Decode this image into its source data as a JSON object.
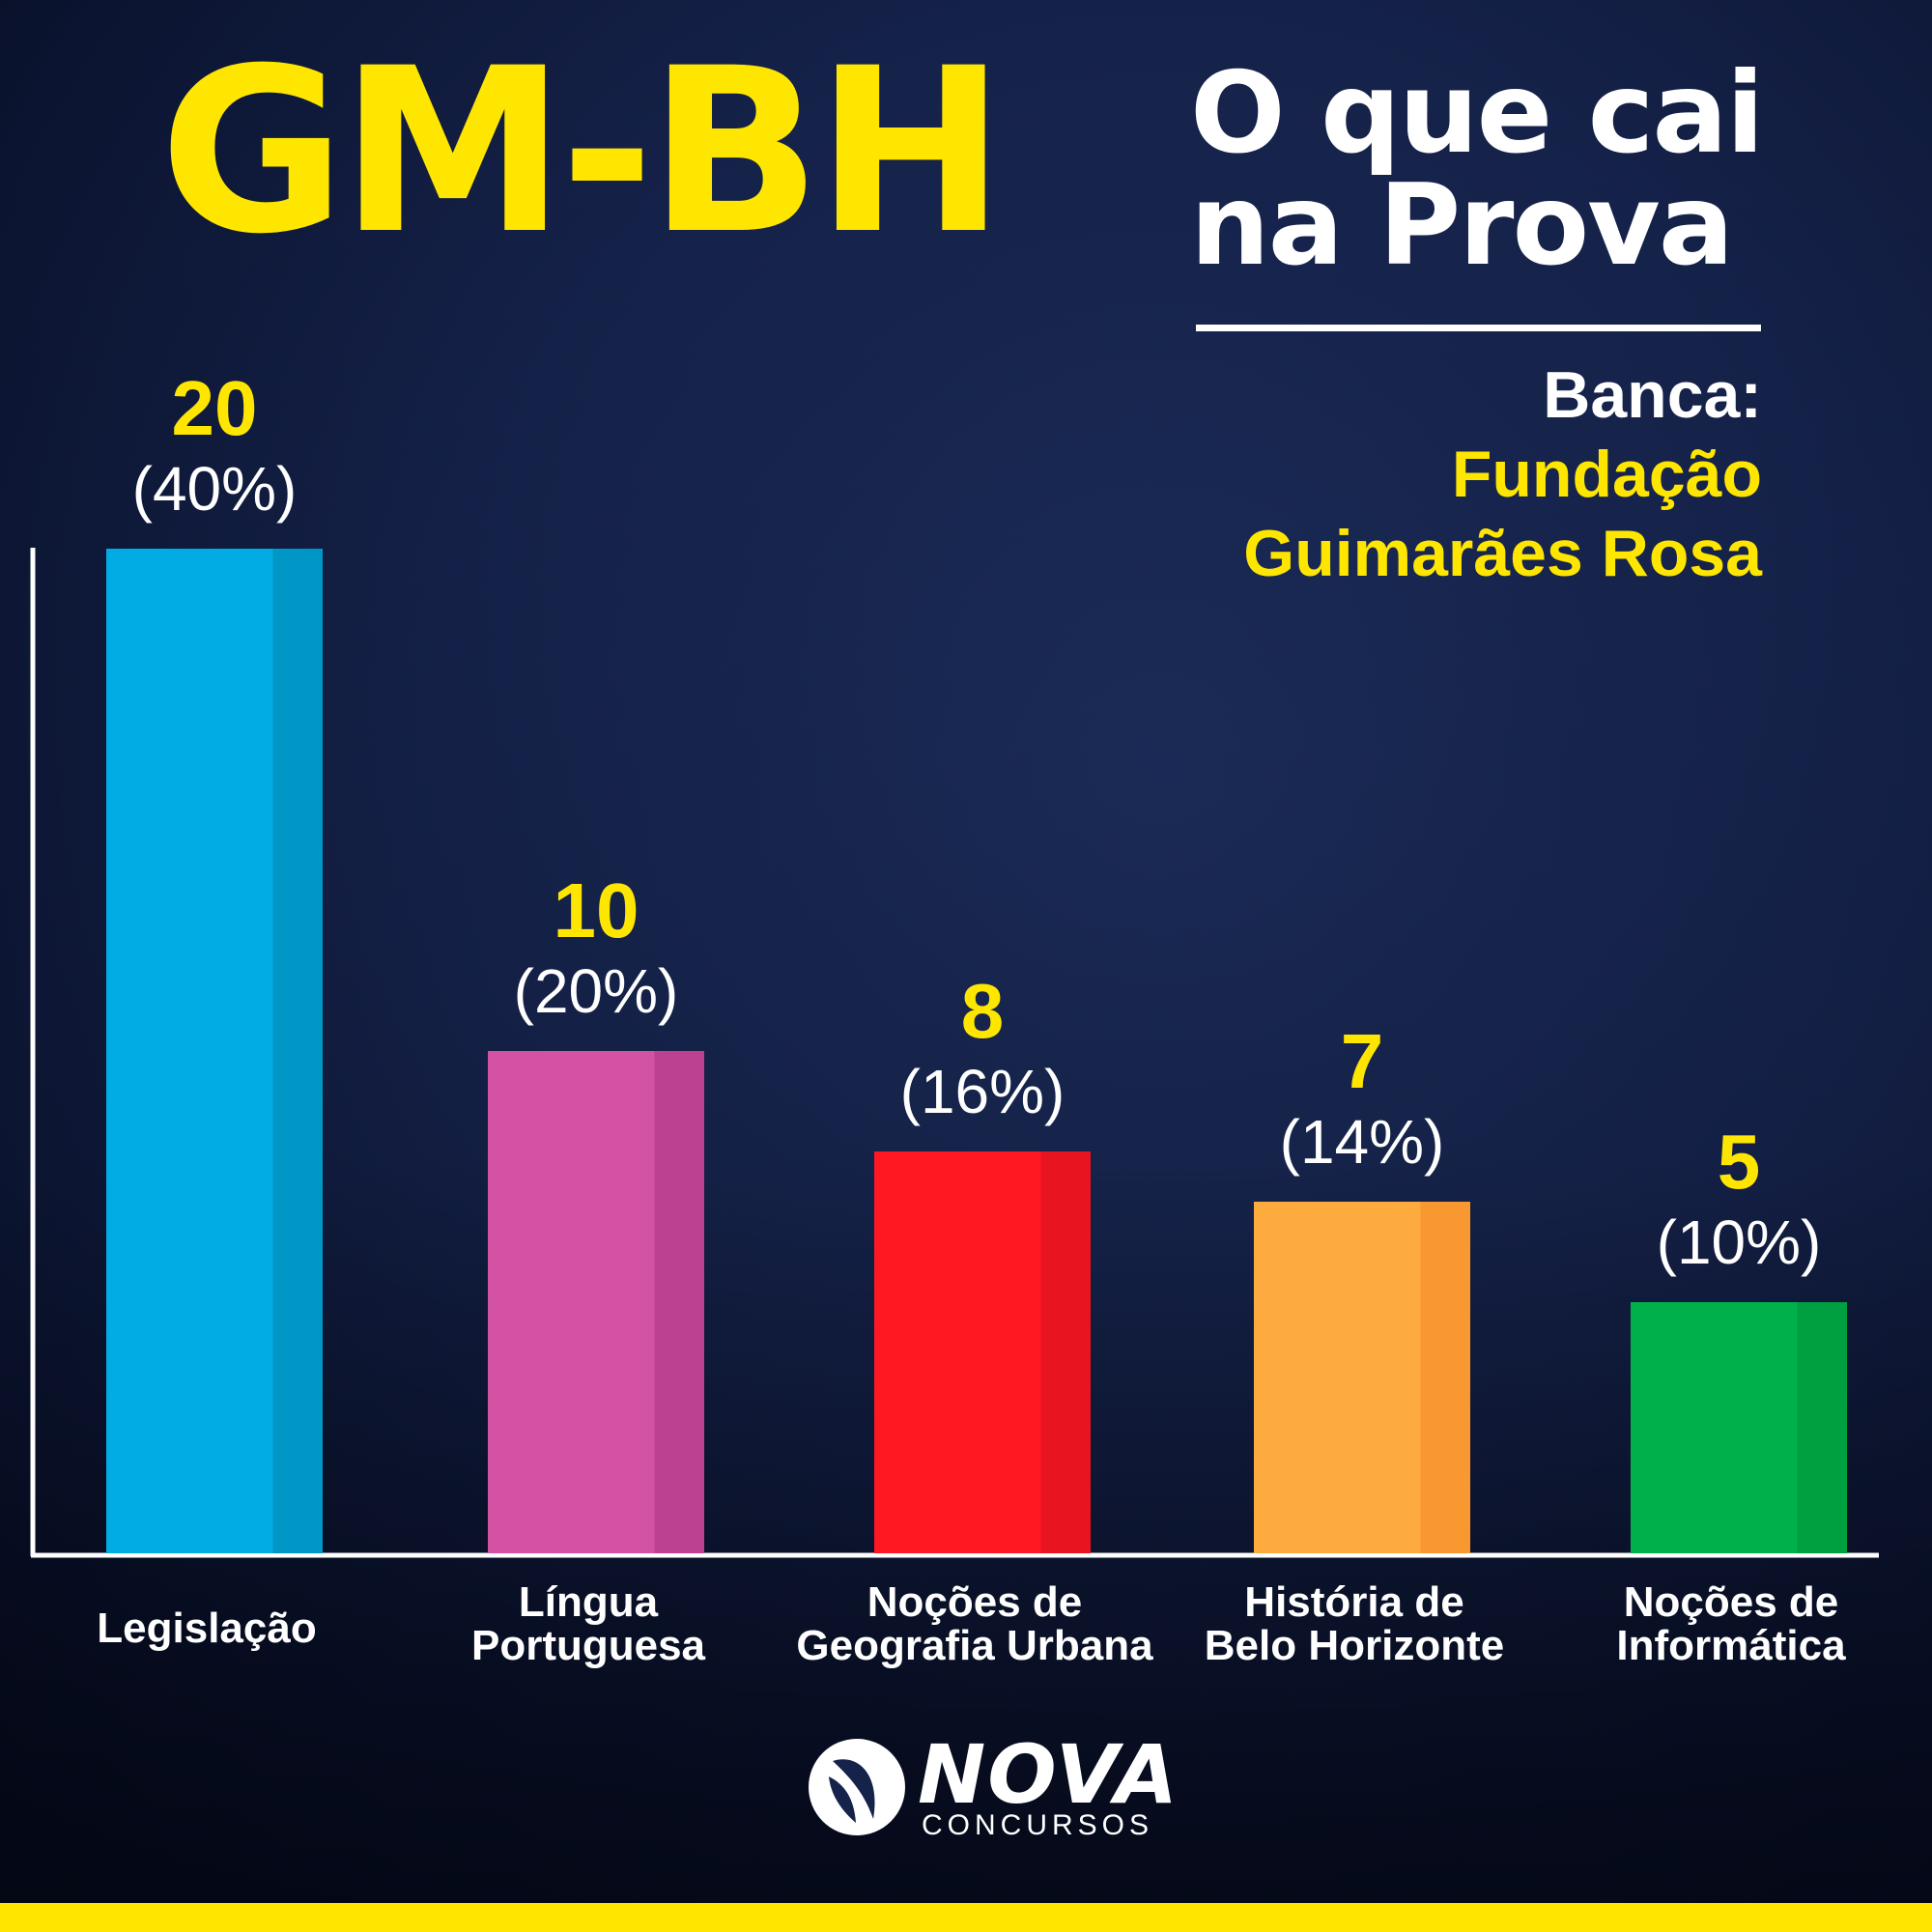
{
  "header": {
    "title": "GM-BH",
    "subtitle_line1": "O que cai",
    "subtitle_line2": "na Prova",
    "banca_label": "Banca:",
    "banca_org_line1": "Fundação",
    "banca_org_line2": "Guimarães Rosa"
  },
  "brand": {
    "name": "NOVA",
    "tagline": "CONCURSOS",
    "icon": "nova-logo-icon"
  },
  "colors": {
    "title": "#ffe600",
    "accent_yellow": "#ffe600",
    "background": "#15224a",
    "text": "#ffffff"
  },
  "chart_data": {
    "type": "bar",
    "categories": [
      [
        "Legislação"
      ],
      [
        "Língua",
        "Portuguesa"
      ],
      [
        "Noções de",
        "Geografia Urbana"
      ],
      [
        "História de",
        "Belo Horizonte"
      ],
      [
        "Noções de",
        "Informática"
      ]
    ],
    "values": [
      20,
      10,
      8,
      7,
      5
    ],
    "value_labels": [
      "20",
      "10",
      "8",
      "7",
      "5"
    ],
    "percent_labels": [
      "(40%)",
      "(20%)",
      "(16%)",
      "(14%)",
      "(10%)"
    ],
    "colors": [
      "#00ace3",
      "#d352a3",
      "#ff1722",
      "#fdaa3e",
      "#00b04a"
    ],
    "shade_colors": [
      "#0096c5",
      "#bd4191",
      "#e8141f",
      "#f99830",
      "#009f40"
    ],
    "ylim": [
      0,
      20
    ],
    "grid": false
  }
}
